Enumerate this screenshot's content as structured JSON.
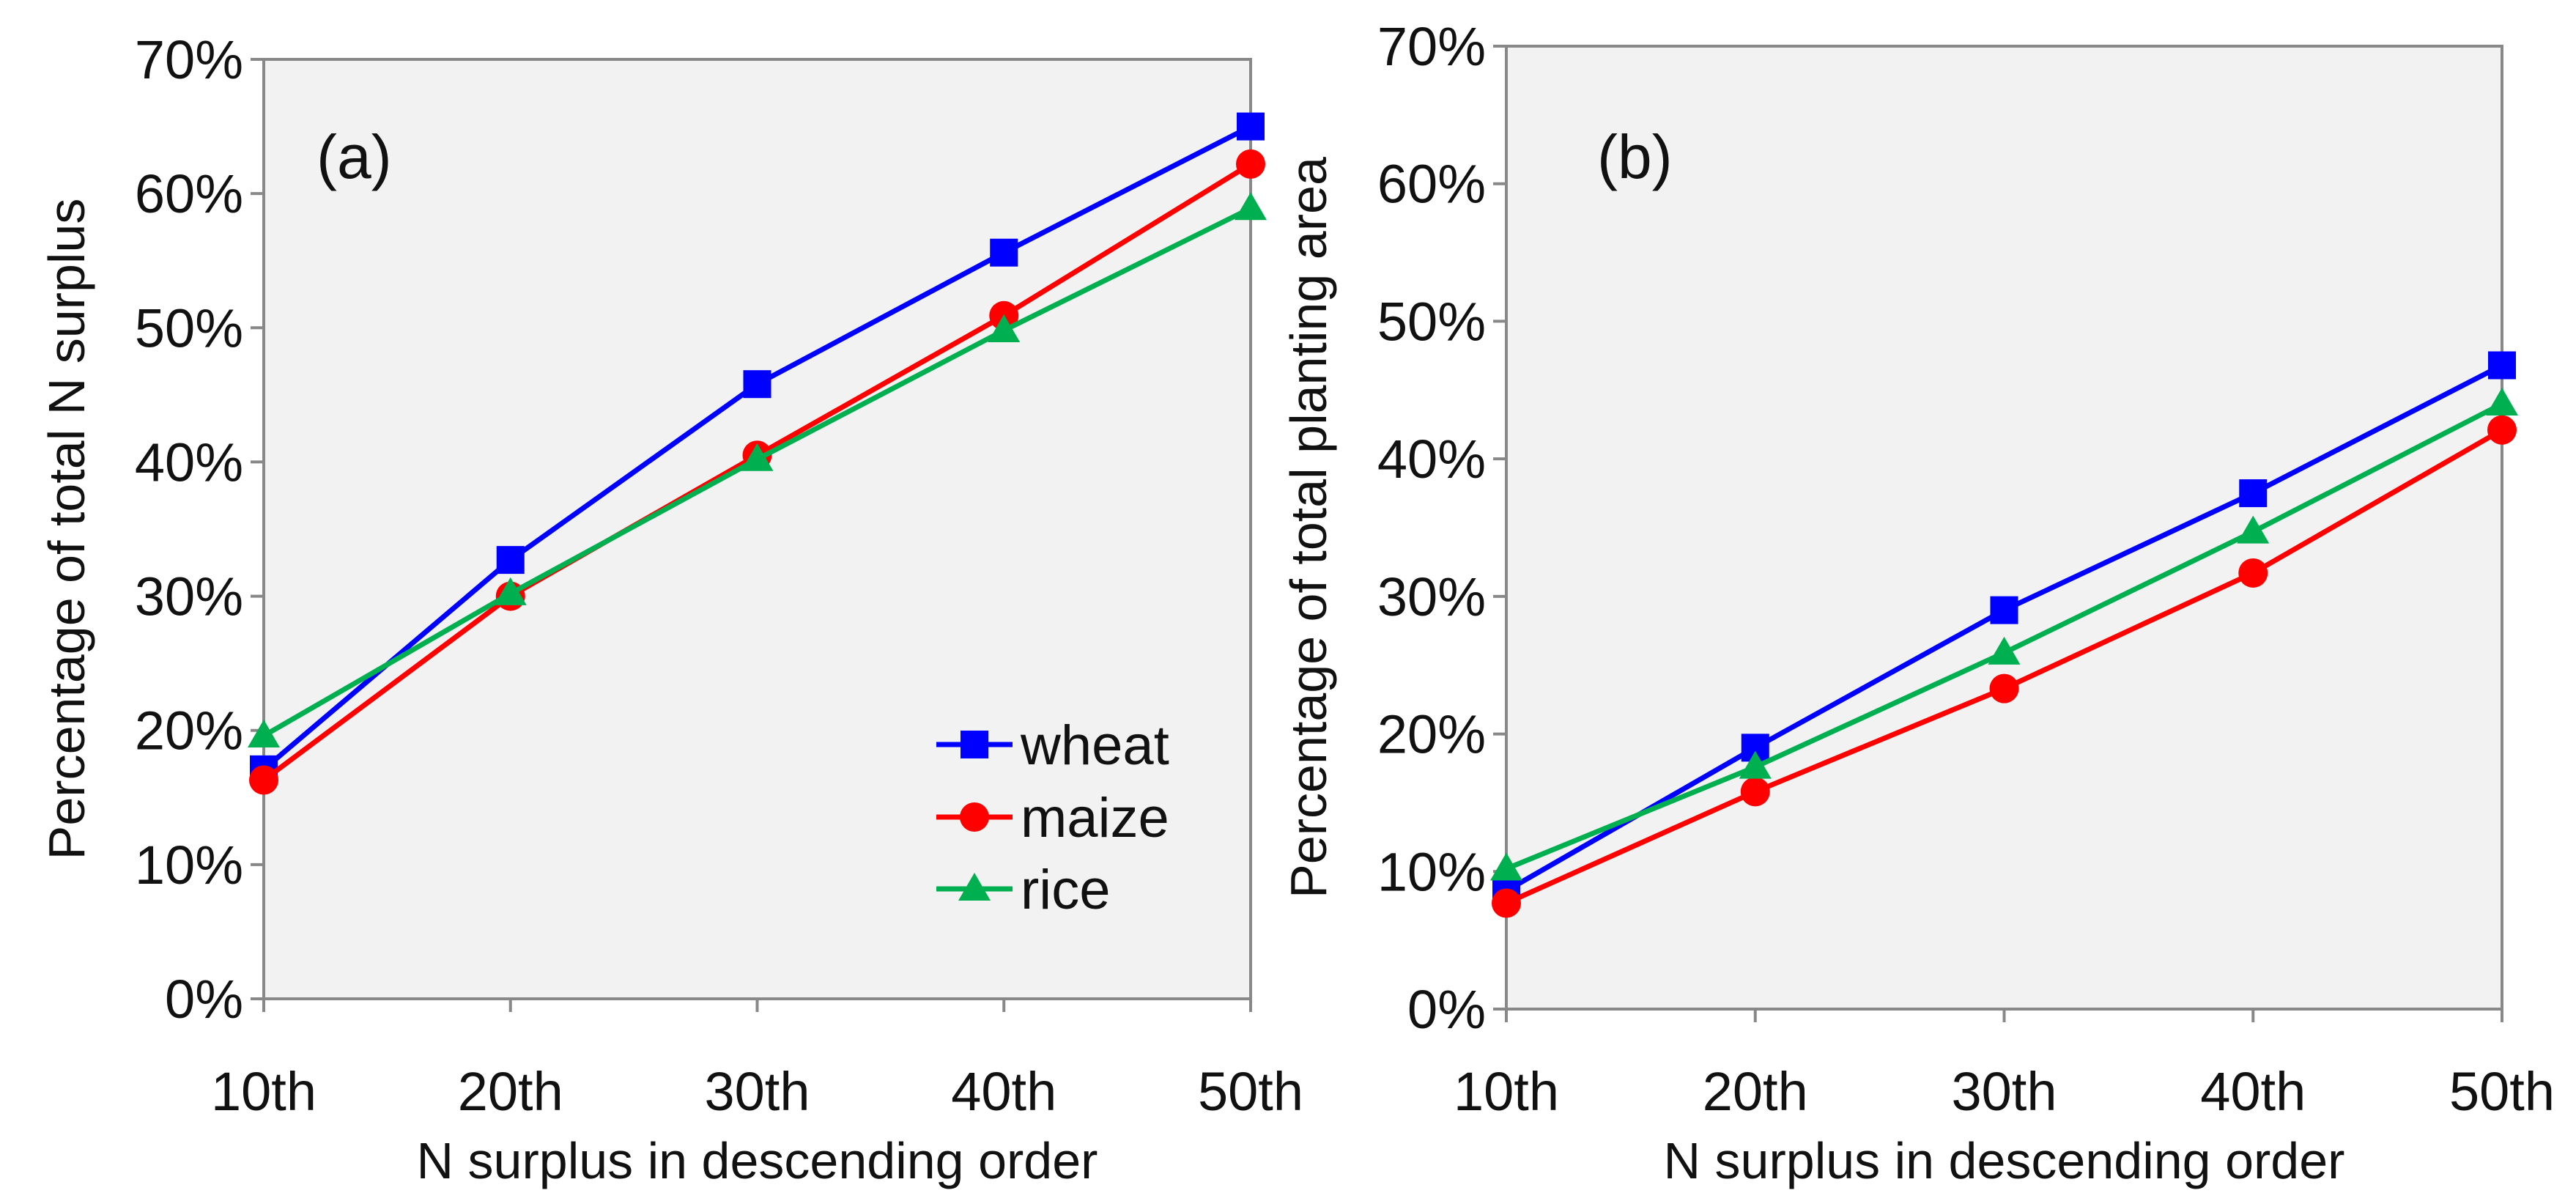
{
  "chart_data": [
    {
      "type": "line",
      "panel_label": "(a)",
      "categories": [
        "10th",
        "20th",
        "30th",
        "40th",
        "50th"
      ],
      "xlabel": "N surplus in descending order",
      "ylabel": "Percentage of total N surplus",
      "ylim": [
        0,
        70
      ],
      "yticks": [
        "0%",
        "10%",
        "20%",
        "30%",
        "40%",
        "50%",
        "60%",
        "70%"
      ],
      "grid": false,
      "legend": "bottom-right",
      "series": [
        {
          "name": "wheat",
          "color": "#0000ff",
          "marker": "square",
          "values": [
            17.1,
            32.7,
            45.8,
            55.6,
            65.0
          ]
        },
        {
          "name": "maize",
          "color": "#ff0000",
          "marker": "circle",
          "values": [
            16.3,
            30.0,
            40.5,
            50.9,
            62.2
          ]
        },
        {
          "name": "rice",
          "color": "#00b050",
          "marker": "triangle",
          "values": [
            19.6,
            30.2,
            40.2,
            49.8,
            58.9
          ]
        }
      ]
    },
    {
      "type": "line",
      "panel_label": "(b)",
      "categories": [
        "10th",
        "20th",
        "30th",
        "40th",
        "50th"
      ],
      "xlabel": "N surplus in descending order",
      "ylabel": "Percentage of total planting area",
      "ylim": [
        0,
        70
      ],
      "yticks": [
        "0%",
        "10%",
        "20%",
        "30%",
        "40%",
        "50%",
        "60%",
        "70%"
      ],
      "grid": false,
      "legend": "none",
      "series": [
        {
          "name": "wheat",
          "color": "#0000ff",
          "marker": "square",
          "values": [
            8.6,
            19.0,
            29.0,
            37.5,
            46.8
          ]
        },
        {
          "name": "maize",
          "color": "#ff0000",
          "marker": "circle",
          "values": [
            7.7,
            15.8,
            23.3,
            31.7,
            42.1
          ]
        },
        {
          "name": "rice",
          "color": "#00b050",
          "marker": "triangle",
          "values": [
            10.2,
            17.6,
            25.9,
            34.7,
            44.0
          ]
        }
      ]
    }
  ]
}
